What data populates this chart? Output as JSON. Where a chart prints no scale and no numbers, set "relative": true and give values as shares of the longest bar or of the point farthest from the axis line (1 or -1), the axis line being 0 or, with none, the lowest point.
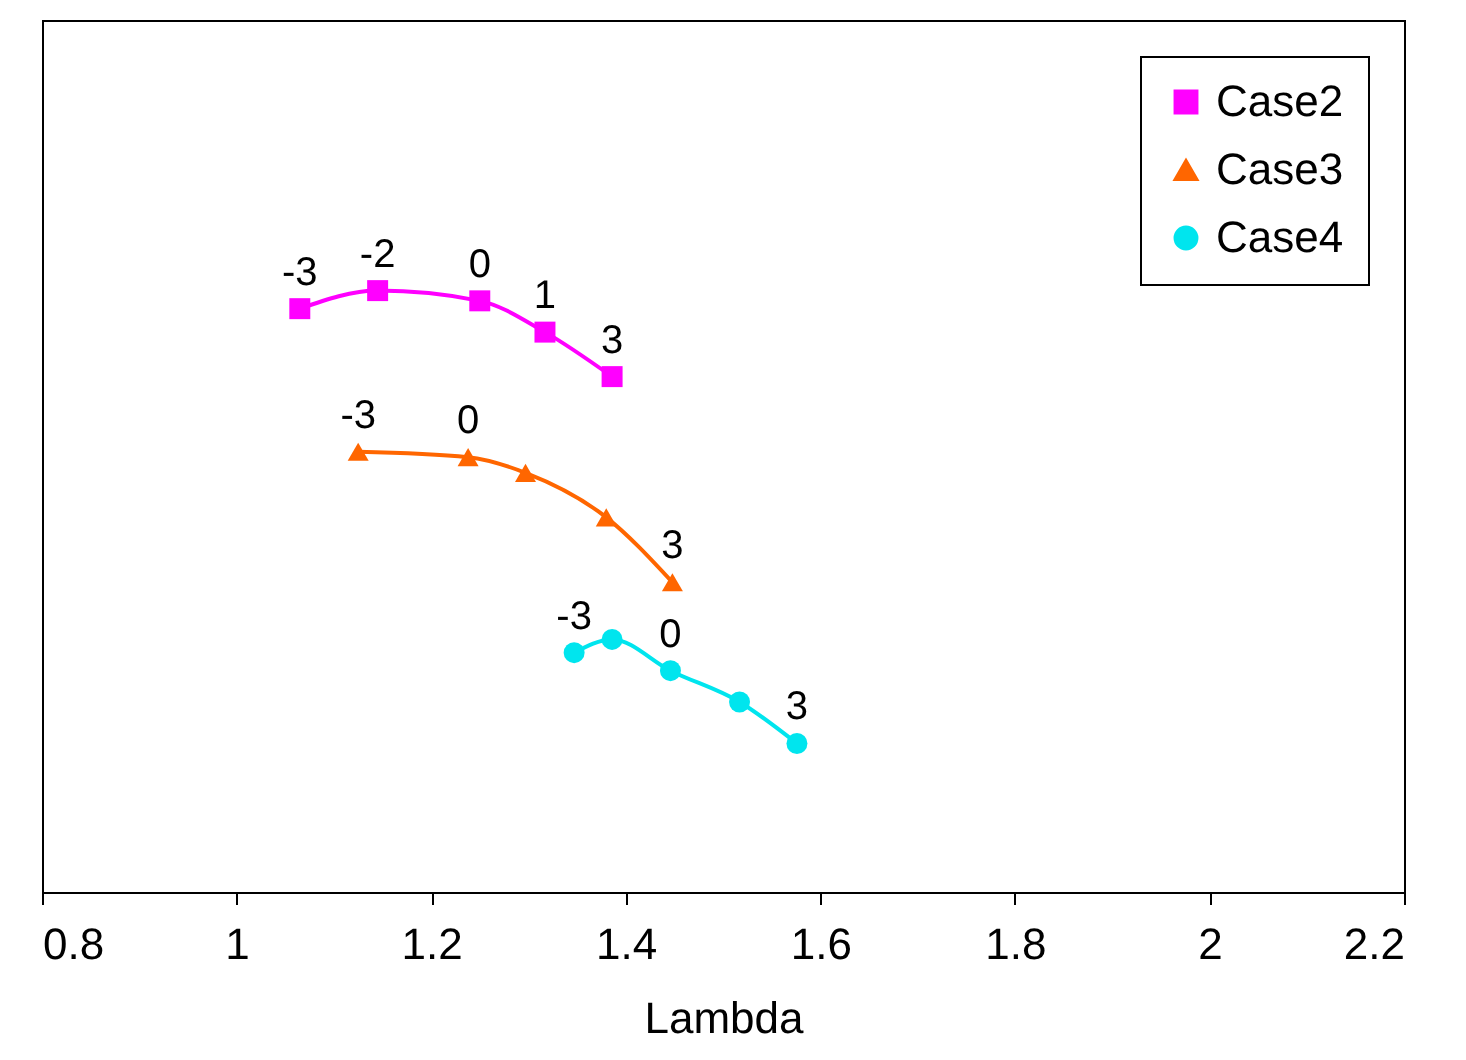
{
  "chart_data": {
    "type": "line",
    "xlabel": "Lambda",
    "relative": true,
    "xlim": [
      0.8,
      2.2
    ],
    "xticks": [
      0.8,
      1,
      1.2,
      1.4,
      1.6,
      1.8,
      2,
      2.2
    ],
    "legend": "top right",
    "grid": false,
    "series": [
      {
        "name": "Case2",
        "color": "#ff00ff",
        "marker": "square",
        "x": [
          1.065,
          1.145,
          1.25,
          1.317,
          1.386
        ],
        "values": [
          0.97,
          1,
          0.983,
          0.931,
          0.857
        ]
      },
      {
        "name": "Case3",
        "color": "#ff6600",
        "marker": "triangle",
        "x": [
          1.125,
          1.238,
          1.297,
          1.38,
          1.448
        ],
        "values": [
          0.732,
          0.723,
          0.697,
          0.623,
          0.515
        ]
      },
      {
        "name": "Case4",
        "color": "#00e5ee",
        "marker": "circle",
        "x": [
          1.347,
          1.386,
          1.446,
          1.517,
          1.576
        ],
        "values": [
          0.398,
          0.42,
          0.368,
          0.316,
          0.247
        ]
      }
    ],
    "annotations": [
      {
        "text": "-3",
        "x": 1.065,
        "y": 0.97
      },
      {
        "text": "-2",
        "x": 1.145,
        "y": 1
      },
      {
        "text": "0",
        "x": 1.25,
        "y": 0.983
      },
      {
        "text": "1",
        "x": 1.317,
        "y": 0.931
      },
      {
        "text": "3",
        "x": 1.386,
        "y": 0.857
      },
      {
        "text": "-3",
        "x": 1.125,
        "y": 0.732
      },
      {
        "text": "0",
        "x": 1.238,
        "y": 0.723
      },
      {
        "text": "3",
        "x": 1.448,
        "y": 0.515
      },
      {
        "text": "-3",
        "x": 1.347,
        "y": 0.398
      },
      {
        "text": "0",
        "x": 1.446,
        "y": 0.368
      },
      {
        "text": "3",
        "x": 1.576,
        "y": 0.247
      }
    ]
  }
}
